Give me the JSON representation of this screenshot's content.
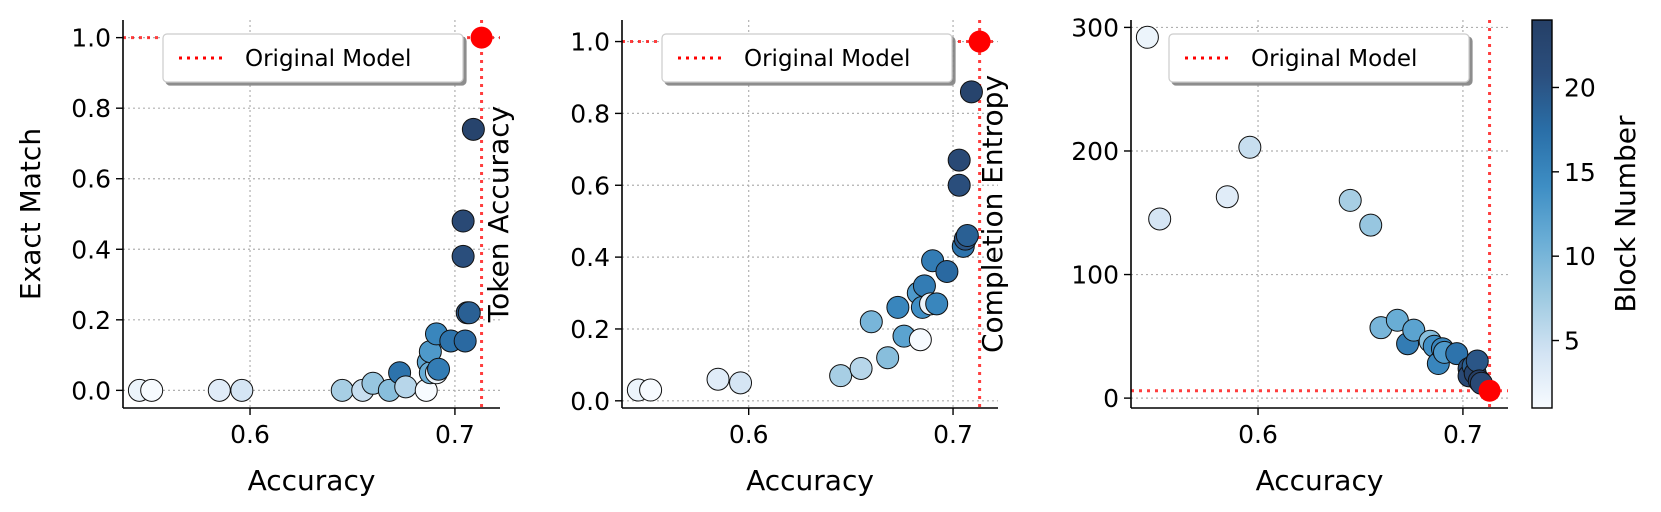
{
  "chart_data": [
    {
      "type": "scatter",
      "xlabel": "Accuracy",
      "ylabel": "Exact Match",
      "xlim": [
        0.538,
        0.722
      ],
      "ylim": [
        -0.05,
        1.05
      ],
      "xticks": [
        0.6,
        0.7
      ],
      "xtick_labels": [
        "0.6",
        "0.7"
      ],
      "yticks": [
        0.0,
        0.2,
        0.4,
        0.6,
        0.8,
        1.0
      ],
      "ytick_labels": [
        "0.0",
        "0.2",
        "0.4",
        "0.6",
        "0.8",
        "1.0"
      ],
      "grid": true,
      "legend": {
        "label": "Original Model",
        "placement": "top-right"
      },
      "original_model": {
        "x": 0.713,
        "y": 1.0,
        "color": "#ff0000"
      },
      "points": [
        {
          "x": 0.546,
          "y": 0.0,
          "block": 2
        },
        {
          "x": 0.552,
          "y": 0.0,
          "block": 1
        },
        {
          "x": 0.585,
          "y": 0.0,
          "block": 3
        },
        {
          "x": 0.596,
          "y": 0.0,
          "block": 4
        },
        {
          "x": 0.645,
          "y": 0.0,
          "block": 7
        },
        {
          "x": 0.655,
          "y": 0.0,
          "block": 5
        },
        {
          "x": 0.66,
          "y": 0.02,
          "block": 8
        },
        {
          "x": 0.668,
          "y": 0.0,
          "block": 9
        },
        {
          "x": 0.673,
          "y": 0.05,
          "block": 17
        },
        {
          "x": 0.676,
          "y": 0.01,
          "block": 6
        },
        {
          "x": 0.686,
          "y": 0.0,
          "block": 1
        },
        {
          "x": 0.687,
          "y": 0.08,
          "block": 12
        },
        {
          "x": 0.688,
          "y": 0.05,
          "block": 11
        },
        {
          "x": 0.688,
          "y": 0.11,
          "block": 13
        },
        {
          "x": 0.691,
          "y": 0.05,
          "block": 2
        },
        {
          "x": 0.691,
          "y": 0.16,
          "block": 15
        },
        {
          "x": 0.692,
          "y": 0.06,
          "block": 16
        },
        {
          "x": 0.698,
          "y": 0.14,
          "block": 17
        },
        {
          "x": 0.704,
          "y": 0.48,
          "block": 22
        },
        {
          "x": 0.704,
          "y": 0.38,
          "block": 21
        },
        {
          "x": 0.705,
          "y": 0.14,
          "block": 18
        },
        {
          "x": 0.706,
          "y": 0.22,
          "block": 20
        },
        {
          "x": 0.707,
          "y": 0.22,
          "block": 19
        },
        {
          "x": 0.709,
          "y": 0.74,
          "block": 23
        }
      ]
    },
    {
      "type": "scatter",
      "xlabel": "Accuracy",
      "ylabel": "Token Accuracy",
      "xlim": [
        0.538,
        0.722
      ],
      "ylim": [
        -0.02,
        1.06
      ],
      "xticks": [
        0.6,
        0.7
      ],
      "xtick_labels": [
        "0.6",
        "0.7"
      ],
      "yticks": [
        0.0,
        0.2,
        0.4,
        0.6,
        0.8,
        1.0
      ],
      "ytick_labels": [
        "0.0",
        "0.2",
        "0.4",
        "0.6",
        "0.8",
        "1.0"
      ],
      "grid": true,
      "legend": {
        "label": "Original Model",
        "placement": "top-right"
      },
      "original_model": {
        "x": 0.713,
        "y": 1.0,
        "color": "#ff0000"
      },
      "points": [
        {
          "x": 0.546,
          "y": 0.03,
          "block": 2
        },
        {
          "x": 0.552,
          "y": 0.03,
          "block": 1
        },
        {
          "x": 0.585,
          "y": 0.06,
          "block": 3
        },
        {
          "x": 0.596,
          "y": 0.05,
          "block": 4
        },
        {
          "x": 0.645,
          "y": 0.07,
          "block": 7
        },
        {
          "x": 0.655,
          "y": 0.09,
          "block": 6
        },
        {
          "x": 0.66,
          "y": 0.22,
          "block": 10
        },
        {
          "x": 0.668,
          "y": 0.12,
          "block": 9
        },
        {
          "x": 0.673,
          "y": 0.26,
          "block": 15
        },
        {
          "x": 0.676,
          "y": 0.18,
          "block": 12
        },
        {
          "x": 0.684,
          "y": 0.17,
          "block": 1
        },
        {
          "x": 0.683,
          "y": 0.3,
          "block": 13
        },
        {
          "x": 0.685,
          "y": 0.26,
          "block": 14
        },
        {
          "x": 0.686,
          "y": 0.32,
          "block": 16
        },
        {
          "x": 0.689,
          "y": 0.27,
          "block": 2
        },
        {
          "x": 0.69,
          "y": 0.39,
          "block": 16
        },
        {
          "x": 0.692,
          "y": 0.27,
          "block": 15
        },
        {
          "x": 0.697,
          "y": 0.36,
          "block": 18
        },
        {
          "x": 0.703,
          "y": 0.67,
          "block": 22
        },
        {
          "x": 0.703,
          "y": 0.6,
          "block": 21
        },
        {
          "x": 0.705,
          "y": 0.43,
          "block": 17
        },
        {
          "x": 0.706,
          "y": 0.45,
          "block": 20
        },
        {
          "x": 0.707,
          "y": 0.46,
          "block": 19
        },
        {
          "x": 0.709,
          "y": 0.86,
          "block": 23
        }
      ]
    },
    {
      "type": "scatter",
      "xlabel": "Accuracy",
      "ylabel": "Completion Entropy",
      "xlim": [
        0.538,
        0.722
      ],
      "ylim": [
        -8,
        306
      ],
      "xticks": [
        0.6,
        0.7
      ],
      "xtick_labels": [
        "0.6",
        "0.7"
      ],
      "yticks": [
        0,
        100,
        200,
        300
      ],
      "ytick_labels": [
        "0",
        "100",
        "200",
        "300"
      ],
      "grid": true,
      "legend": {
        "label": "Original Model",
        "placement": "top-left"
      },
      "original_model": {
        "x": 0.713,
        "y": 6,
        "color": "#ff0000"
      },
      "colorbar": {
        "label": "Block Number",
        "range": [
          1,
          24
        ],
        "ticks": [
          5,
          10,
          15,
          20
        ],
        "tick_labels": [
          "5",
          "10",
          "15",
          "20"
        ],
        "colors": [
          "#f7fbff",
          "#d2e3f3",
          "#9ecae1",
          "#6baed6",
          "#3e8ec4",
          "#2a6fa8",
          "#2b4f7e",
          "#253f66"
        ]
      },
      "points": [
        {
          "x": 0.546,
          "y": 292,
          "block": 2
        },
        {
          "x": 0.552,
          "y": 145,
          "block": 4
        },
        {
          "x": 0.585,
          "y": 163,
          "block": 3
        },
        {
          "x": 0.596,
          "y": 203,
          "block": 5
        },
        {
          "x": 0.645,
          "y": 160,
          "block": 7
        },
        {
          "x": 0.655,
          "y": 140,
          "block": 8
        },
        {
          "x": 0.66,
          "y": 57,
          "block": 10
        },
        {
          "x": 0.668,
          "y": 63,
          "block": 11
        },
        {
          "x": 0.673,
          "y": 44,
          "block": 16
        },
        {
          "x": 0.676,
          "y": 55,
          "block": 12
        },
        {
          "x": 0.684,
          "y": 46,
          "block": 9
        },
        {
          "x": 0.686,
          "y": 42,
          "block": 14
        },
        {
          "x": 0.688,
          "y": 28,
          "block": 15
        },
        {
          "x": 0.69,
          "y": 40,
          "block": 15
        },
        {
          "x": 0.691,
          "y": 37,
          "block": 13
        },
        {
          "x": 0.697,
          "y": 36,
          "block": 17
        },
        {
          "x": 0.703,
          "y": 24,
          "block": 21
        },
        {
          "x": 0.703,
          "y": 18,
          "block": 22
        },
        {
          "x": 0.705,
          "y": 26,
          "block": 19
        },
        {
          "x": 0.706,
          "y": 20,
          "block": 23
        },
        {
          "x": 0.707,
          "y": 30,
          "block": 20
        },
        {
          "x": 0.708,
          "y": 14,
          "block": 24
        },
        {
          "x": 0.709,
          "y": 12,
          "block": 22
        }
      ]
    }
  ]
}
